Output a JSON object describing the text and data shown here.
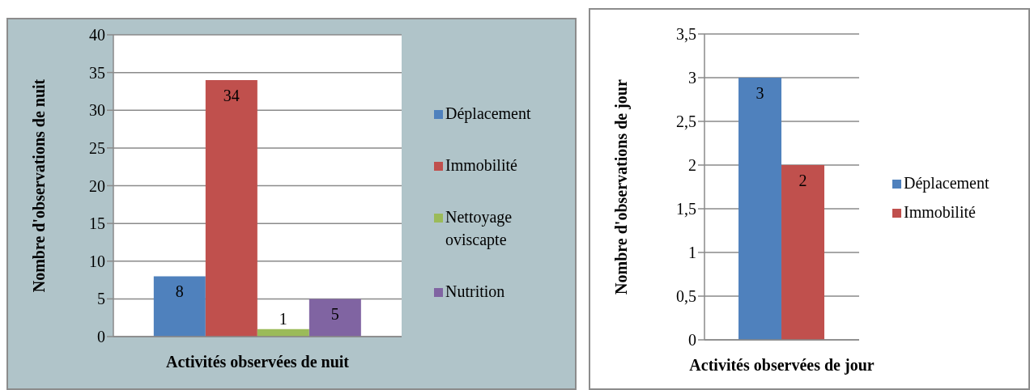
{
  "chart_data": [
    {
      "type": "bar",
      "categories": [
        null
      ],
      "xlabel": "Activités observées de nuit",
      "ylabel": "Nombre d'observations de nuit",
      "series": [
        {
          "name": "Déplacement",
          "color": "#4f81bd",
          "values": [
            8
          ]
        },
        {
          "name": "Immobilité",
          "color": "#c0504d",
          "values": [
            34
          ]
        },
        {
          "name": "Nettoyage oviscapte",
          "color": "#9bbb59",
          "values": [
            1
          ]
        },
        {
          "name": "Nutrition",
          "color": "#8064a2",
          "values": [
            5
          ]
        }
      ],
      "ylim": [
        0,
        40
      ],
      "yticks": [
        0,
        5,
        10,
        15,
        20,
        25,
        30,
        35,
        40
      ],
      "grid": "y",
      "legend": "right",
      "data_labels": true
    },
    {
      "type": "bar",
      "categories": [
        null
      ],
      "xlabel": "Activités observées de jour",
      "ylabel": "Nombre d'observations de jour",
      "series": [
        {
          "name": "Déplacement",
          "color": "#4f81bd",
          "values": [
            3
          ]
        },
        {
          "name": "Immobilité",
          "color": "#c0504d",
          "values": [
            2
          ]
        }
      ],
      "ylim": [
        0,
        3.5
      ],
      "yticks": [
        0,
        {
          "value": 0.5,
          "label": "0,5"
        },
        1,
        {
          "value": 1.5,
          "label": "1,5"
        },
        2,
        {
          "value": 2.5,
          "label": "2,5"
        },
        3,
        {
          "value": 3.5,
          "label": "3,5"
        }
      ],
      "grid": "y",
      "legend": "right",
      "data_labels": true
    }
  ]
}
